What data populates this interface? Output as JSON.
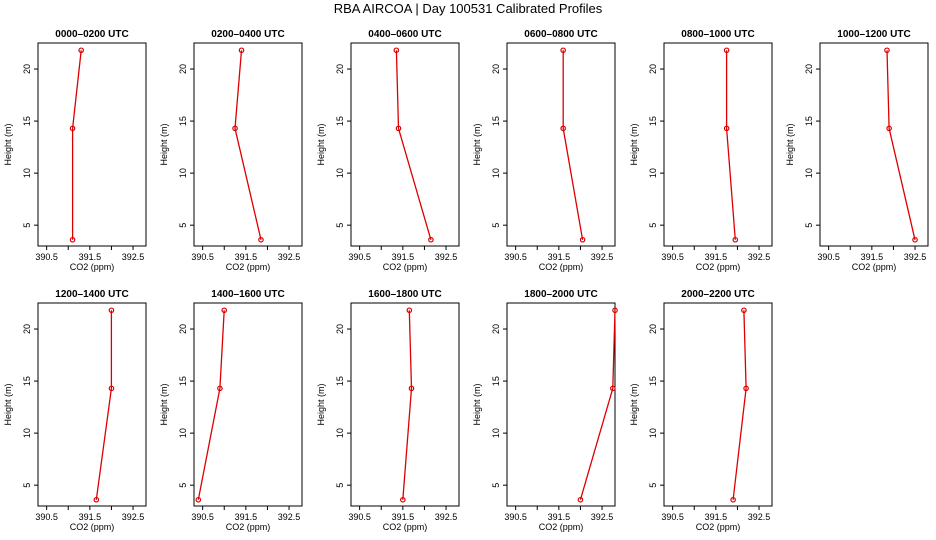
{
  "title": "RBA AIRCOA |  Day 100531  Calibrated Profiles",
  "chart_data": {
    "type": "line",
    "xlabel": "CO2 (ppm)",
    "ylabel": "Height (m)",
    "xlim": [
      390.3,
      392.8
    ],
    "ylim": [
      3,
      22.5
    ],
    "xticks": [
      390.5,
      391.5,
      392.5
    ],
    "xtick_labels": [
      "390.5",
      "391.5",
      "392.5"
    ],
    "yticks": [
      5,
      10,
      15,
      20
    ],
    "ytick_labels": [
      "5",
      "10",
      "15",
      "20"
    ],
    "grid": false,
    "line_color": "#dd0000",
    "panels": [
      {
        "title": "0000–0200 UTC",
        "x": [
          391.1,
          391.1,
          391.3
        ],
        "y": [
          3.6,
          14.3,
          21.8
        ]
      },
      {
        "title": "0200–0400 UTC",
        "x": [
          391.85,
          391.25,
          391.4
        ],
        "y": [
          3.6,
          14.3,
          21.8
        ]
      },
      {
        "title": "0400–0600 UTC",
        "x": [
          392.15,
          391.4,
          391.35
        ],
        "y": [
          3.6,
          14.3,
          21.8
        ]
      },
      {
        "title": "0600–0800 UTC",
        "x": [
          392.05,
          391.6,
          391.6
        ],
        "y": [
          3.6,
          14.3,
          21.8
        ]
      },
      {
        "title": "0800–1000 UTC",
        "x": [
          391.95,
          391.75,
          391.75
        ],
        "y": [
          3.6,
          14.3,
          21.8
        ]
      },
      {
        "title": "1000–1200 UTC",
        "x": [
          392.5,
          391.9,
          391.85
        ],
        "y": [
          3.6,
          14.3,
          21.8
        ]
      },
      {
        "title": "1200–1400 UTC",
        "x": [
          391.65,
          392.0,
          392.0
        ],
        "y": [
          3.6,
          14.3,
          21.8
        ]
      },
      {
        "title": "1400–1600 UTC",
        "x": [
          390.4,
          390.9,
          391.0
        ],
        "y": [
          3.6,
          14.3,
          21.8
        ]
      },
      {
        "title": "1600–1800 UTC",
        "x": [
          391.5,
          391.7,
          391.65
        ],
        "y": [
          3.6,
          14.3,
          21.8
        ]
      },
      {
        "title": "1800–2000 UTC",
        "x": [
          392.0,
          392.75,
          392.8
        ],
        "y": [
          3.6,
          14.3,
          21.8
        ]
      },
      {
        "title": "2000–2200 UTC",
        "x": [
          391.9,
          392.2,
          392.15
        ],
        "y": [
          3.6,
          14.3,
          21.8
        ]
      }
    ]
  }
}
